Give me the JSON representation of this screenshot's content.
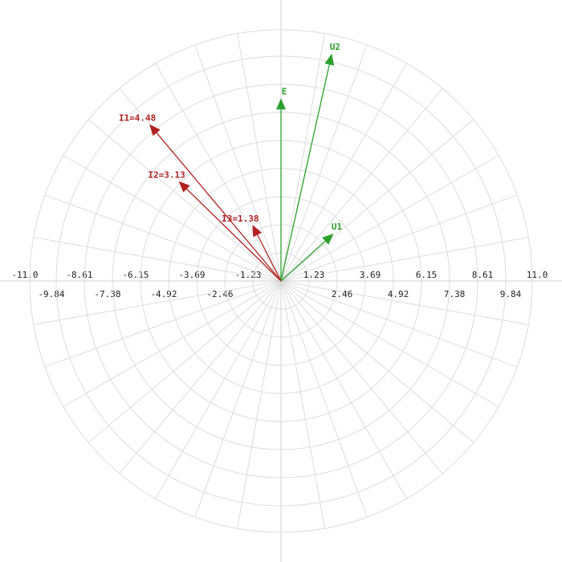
{
  "chart_data": {
    "type": "phasor",
    "rlim": [
      0,
      11
    ],
    "current_rlim": [
      0,
      5.5
    ],
    "xticks": [
      {
        "value": -11,
        "label": "-11.0"
      },
      -9.84,
      -8.61,
      -7.38,
      -6.15,
      -4.92,
      -3.69,
      -2.46,
      -1.23,
      1.23,
      2.46,
      3.69,
      4.92,
      6.15,
      7.38,
      8.61,
      9.84,
      {
        "value": 11,
        "label": "11.0"
      }
    ],
    "grid": true,
    "voltages": [
      {
        "label": "E",
        "magnitude": 8.0,
        "angle": 90,
        "color": "#2ca02c"
      },
      {
        "label": "U2",
        "magnitude": 10.2,
        "angle": 77.4,
        "color": "#2ca02c"
      },
      {
        "label": "U1",
        "magnitude": 3.1,
        "angle": 42,
        "color": "#2ca02c"
      }
    ],
    "currents": [
      {
        "label": "I1=4.48",
        "magnitude": 4.48,
        "angle": 130,
        "color": "#b22222"
      },
      {
        "label": "I2=3.13",
        "magnitude": 3.13,
        "angle": 135.7,
        "color": "#b22222"
      },
      {
        "label": "I3=1.38",
        "magnitude": 1.38,
        "angle": 117,
        "color": "#b22222"
      }
    ]
  }
}
